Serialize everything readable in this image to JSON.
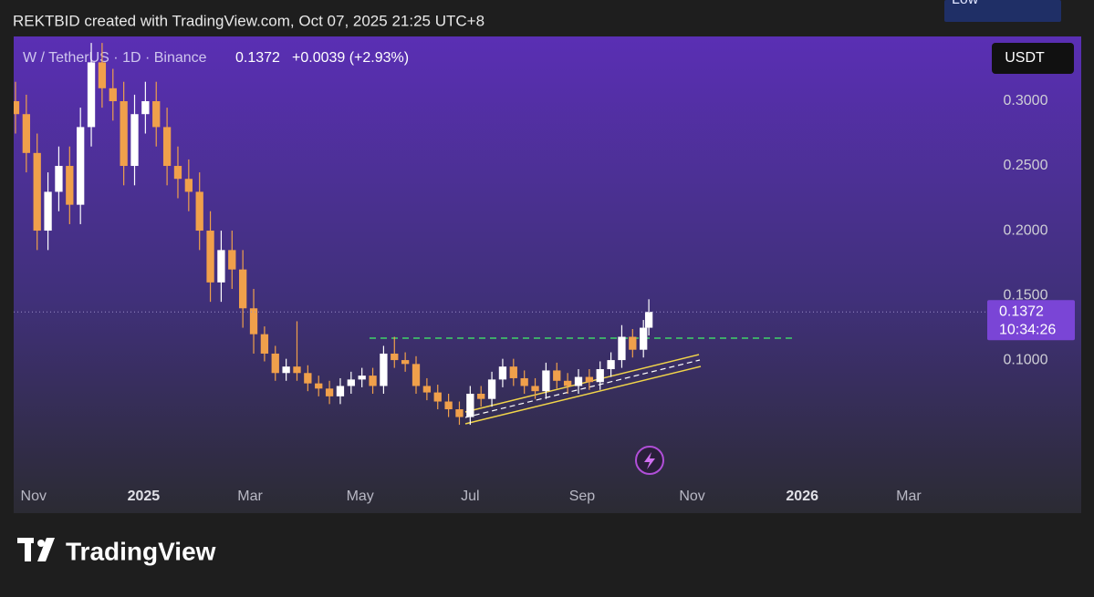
{
  "header": "REKTBID created with TradingView.com, Oct 07, 2025 21:25 UTC+8",
  "footer_brand": "TradingView",
  "chart_data": {
    "type": "candlestick",
    "symbol": "W / TetherUS · 1D · Binance",
    "last_price_label": "0.1372",
    "change_label": "+0.0039 (+2.93%)",
    "currency": "USDT",
    "countdown": "10:34:26",
    "low_label": "Low",
    "low": [
      0.275,
      0.245,
      0.185,
      0.185,
      0.215,
      0.205,
      0.205,
      0.265,
      0.295,
      0.285,
      0.235,
      0.235,
      0.275,
      0.265,
      0.235,
      0.225,
      0.215,
      0.185,
      0.145,
      0.145,
      0.155,
      0.125,
      0.105,
      0.099,
      0.084,
      0.084,
      0.084,
      0.076,
      0.072,
      0.066,
      0.066,
      0.074,
      0.079,
      0.074,
      0.074,
      0.094,
      0.091,
      0.074,
      0.069,
      0.062,
      0.056,
      0.05,
      0.05,
      0.064,
      0.064,
      0.079,
      0.08,
      0.074,
      0.07,
      0.07,
      0.078,
      0.074,
      0.074,
      0.077,
      0.077,
      0.087,
      0.094,
      0.102,
      0.102,
      0.119
    ],
    "up_color": "#ffffff",
    "down_color": "#f0a04b",
    "x": [
      -10,
      -4,
      2,
      8,
      14,
      20,
      26,
      32,
      38,
      44,
      50,
      56,
      62,
      68,
      74,
      80,
      86,
      92,
      98,
      104,
      110,
      116,
      122,
      128,
      134,
      140,
      146,
      152,
      158,
      164,
      170,
      176,
      182,
      188,
      194,
      200,
      206,
      212,
      218,
      224,
      230,
      236,
      242,
      248,
      254,
      260,
      266,
      272,
      278,
      284,
      290,
      296,
      302,
      308,
      314,
      320,
      326,
      332,
      338,
      341
    ],
    "open": [
      0.3,
      0.29,
      0.26,
      0.2,
      0.23,
      0.25,
      0.22,
      0.28,
      0.33,
      0.31,
      0.3,
      0.25,
      0.29,
      0.3,
      0.28,
      0.25,
      0.24,
      0.23,
      0.2,
      0.16,
      0.185,
      0.17,
      0.14,
      0.12,
      0.105,
      0.09,
      0.095,
      0.09,
      0.082,
      0.078,
      0.072,
      0.08,
      0.085,
      0.088,
      0.08,
      0.105,
      0.1,
      0.097,
      0.08,
      0.075,
      0.068,
      0.062,
      0.056,
      0.074,
      0.07,
      0.085,
      0.095,
      0.086,
      0.08,
      0.076,
      0.092,
      0.084,
      0.08,
      0.087,
      0.083,
      0.093,
      0.1,
      0.118,
      0.108,
      0.125
    ],
    "high": [
      0.315,
      0.305,
      0.275,
      0.245,
      0.265,
      0.265,
      0.295,
      0.345,
      0.345,
      0.325,
      0.315,
      0.305,
      0.315,
      0.315,
      0.295,
      0.265,
      0.255,
      0.245,
      0.215,
      0.2,
      0.2,
      0.185,
      0.155,
      0.126,
      0.111,
      0.101,
      0.13,
      0.096,
      0.088,
      0.084,
      0.086,
      0.091,
      0.094,
      0.094,
      0.111,
      0.118,
      0.106,
      0.103,
      0.086,
      0.081,
      0.074,
      0.068,
      0.08,
      0.08,
      0.091,
      0.101,
      0.101,
      0.092,
      0.086,
      0.098,
      0.098,
      0.09,
      0.093,
      0.093,
      0.099,
      0.106,
      0.127,
      0.124,
      0.131,
      0.147
    ],
    "close": [
      0.29,
      0.26,
      0.2,
      0.23,
      0.25,
      0.22,
      0.28,
      0.33,
      0.31,
      0.3,
      0.25,
      0.29,
      0.3,
      0.28,
      0.25,
      0.24,
      0.23,
      0.2,
      0.16,
      0.185,
      0.17,
      0.14,
      0.12,
      0.105,
      0.09,
      0.095,
      0.09,
      0.082,
      0.078,
      0.072,
      0.08,
      0.085,
      0.088,
      0.08,
      0.105,
      0.1,
      0.097,
      0.08,
      0.075,
      0.068,
      0.062,
      0.056,
      0.074,
      0.07,
      0.085,
      0.095,
      0.086,
      0.08,
      0.076,
      0.092,
      0.084,
      0.08,
      0.087,
      0.083,
      0.093,
      0.1,
      0.118,
      0.108,
      0.125,
      0.1372
    ],
    "xlim": [
      -11,
      525
    ],
    "ylim": [
      0.005,
      0.35
    ],
    "xticks": [
      {
        "value": 0,
        "label": "Nov"
      },
      {
        "value": 61,
        "label": "2025"
      },
      {
        "value": 120,
        "label": "Mar"
      },
      {
        "value": 181,
        "label": "May"
      },
      {
        "value": 242,
        "label": "Jul"
      },
      {
        "value": 304,
        "label": "Sep"
      },
      {
        "value": 365,
        "label": "Nov"
      },
      {
        "value": 426,
        "label": "2026"
      },
      {
        "value": 485,
        "label": "Mar"
      }
    ],
    "yticks": [
      {
        "value": 0.3,
        "label": "0.3000"
      },
      {
        "value": 0.25,
        "label": "0.2500"
      },
      {
        "value": 0.2,
        "label": "0.2000"
      },
      {
        "value": 0.15,
        "label": "0.1500"
      },
      {
        "value": 0.1,
        "label": "0.1000"
      }
    ]
  }
}
